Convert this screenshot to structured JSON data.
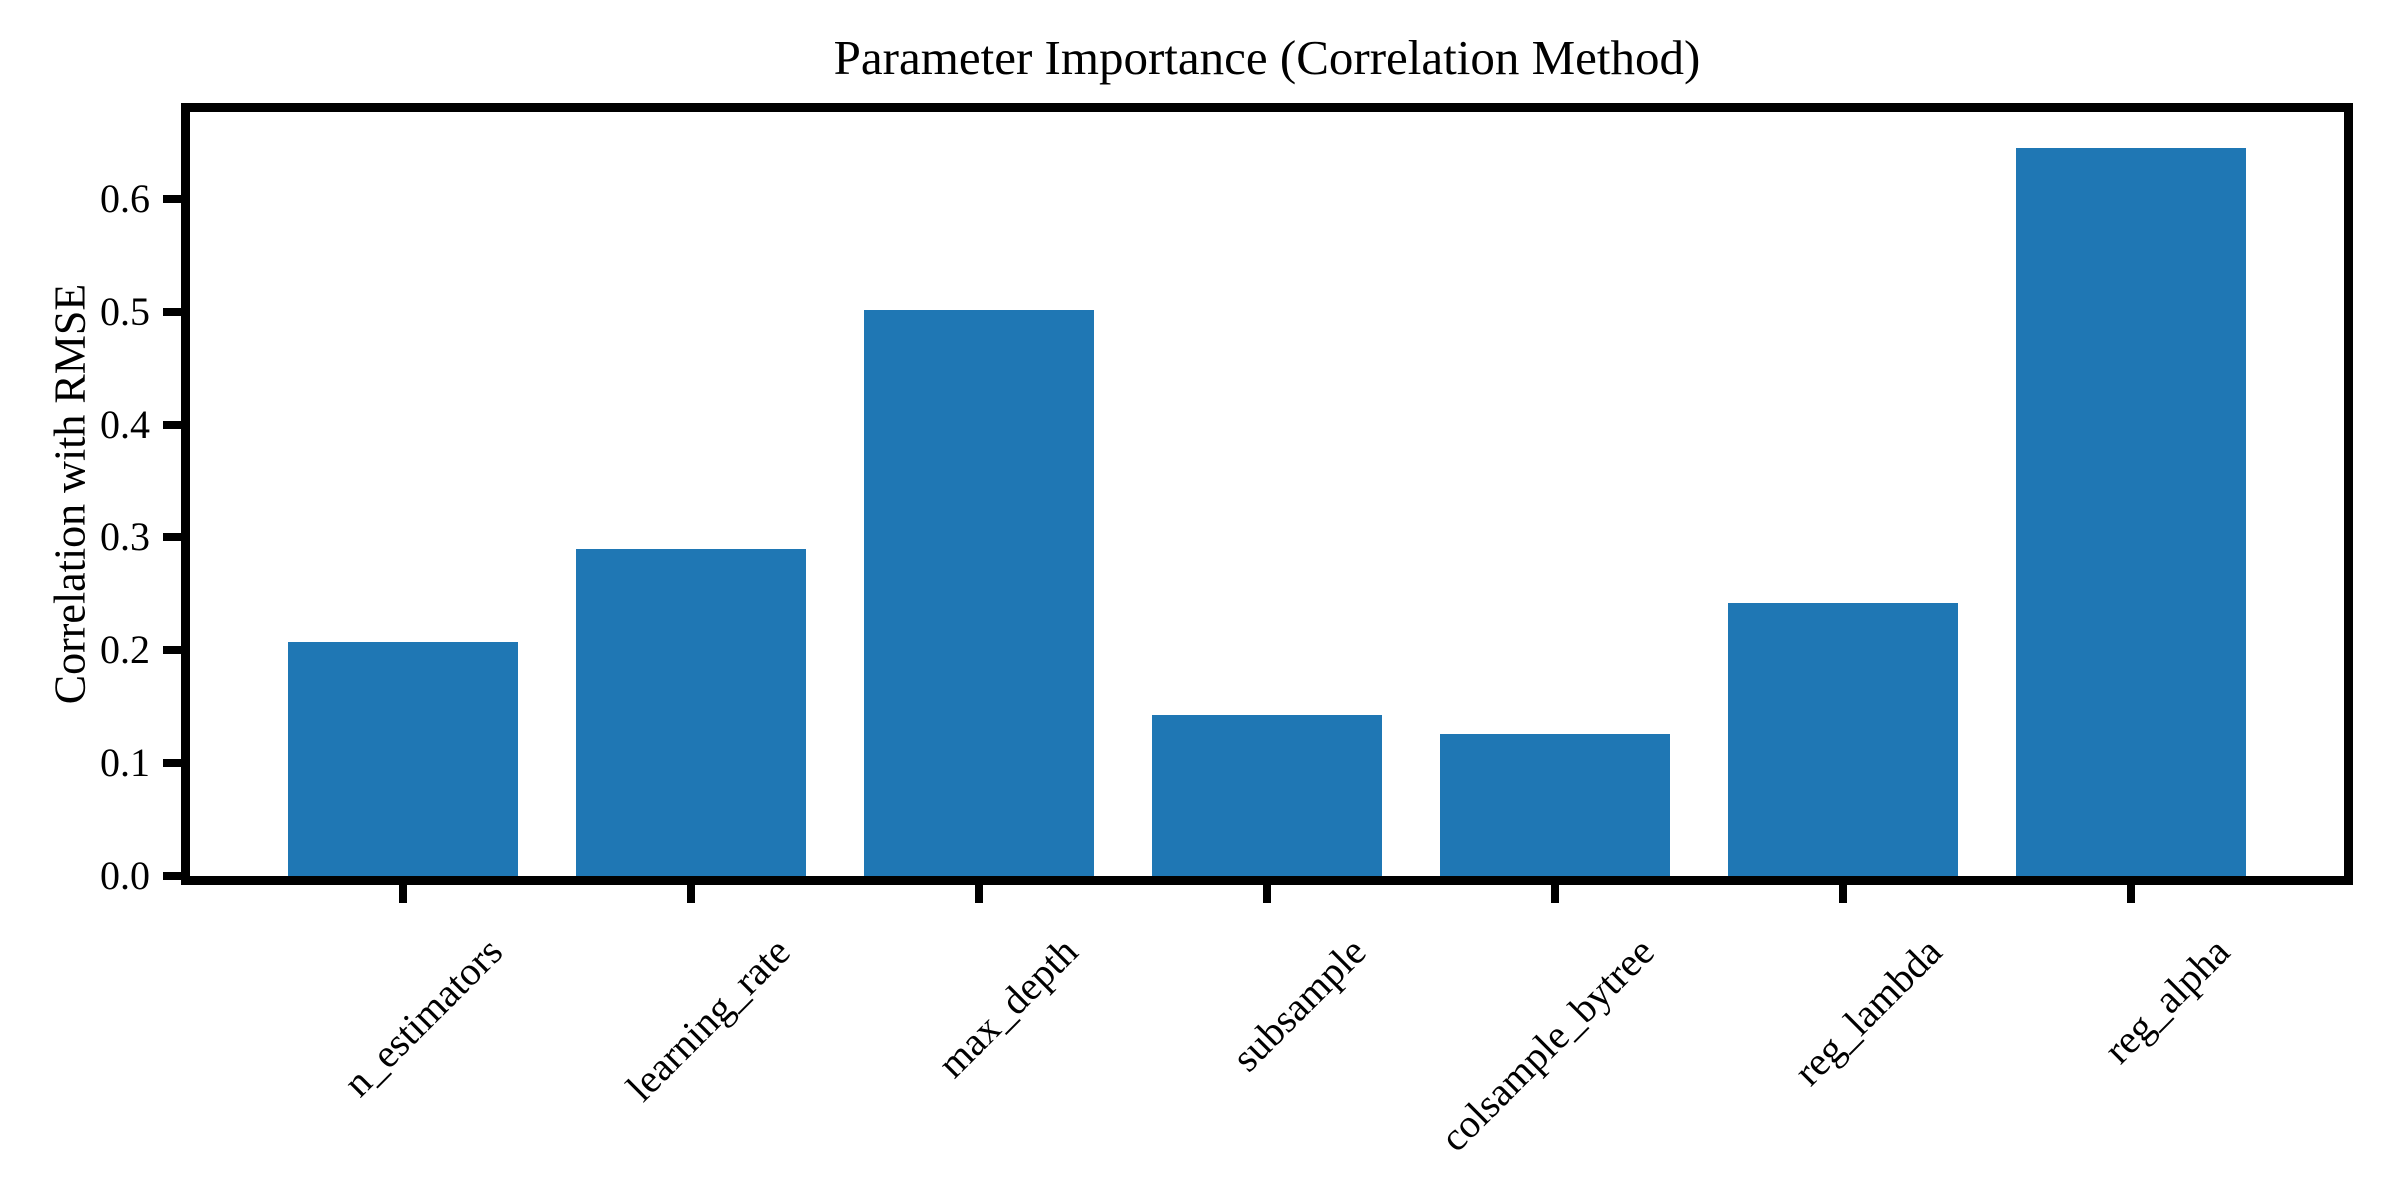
{
  "chart_data": {
    "type": "bar",
    "title": "Parameter Importance (Correlation Method)",
    "ylabel": "Correlation with RMSE",
    "xlabel": "",
    "categories": [
      "n_estimators",
      "learning_rate",
      "max_depth",
      "subsample",
      "colsample_bytree",
      "reg_lambda",
      "reg_alpha"
    ],
    "values": [
      0.207,
      0.29,
      0.502,
      0.143,
      0.126,
      0.242,
      0.645
    ],
    "yticks": [
      0.0,
      0.1,
      0.2,
      0.3,
      0.4,
      0.5,
      0.6
    ],
    "ytick_labels": [
      "0.0",
      "0.1",
      "0.2",
      "0.3",
      "0.4",
      "0.5",
      "0.6"
    ],
    "ylim": [
      0,
      0.677
    ],
    "xtick_label_rotation_deg": 45,
    "bar_color": "#1f77b4",
    "axis_color": "#000000",
    "background_color": "#ffffff",
    "grid": false,
    "legend": "none"
  }
}
